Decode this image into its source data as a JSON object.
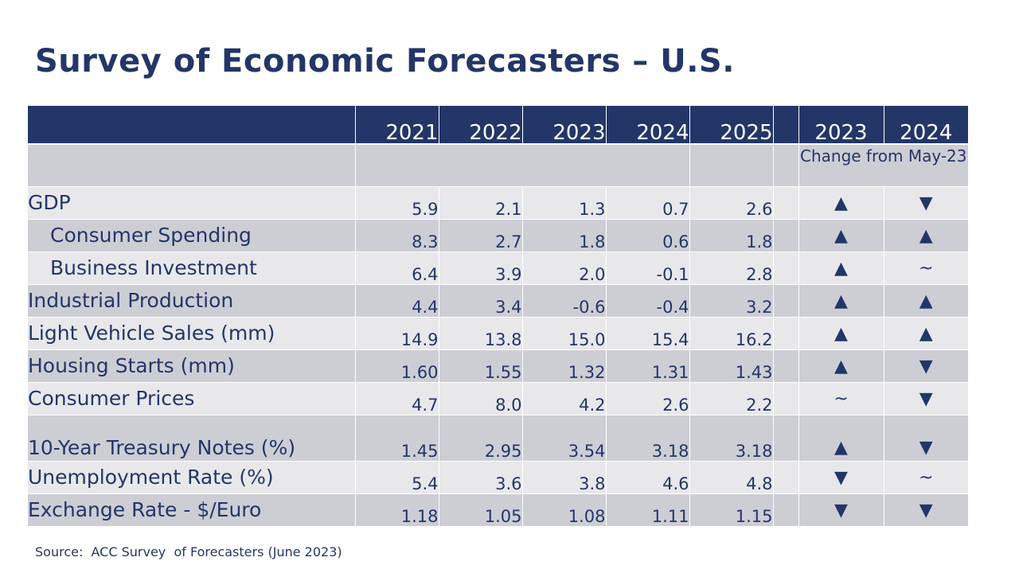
{
  "title": "Survey of Economic Forecasters – U.S.",
  "header": {
    "years": [
      "2021",
      "2022",
      "2023",
      "2024",
      "2025"
    ],
    "change_years": [
      "2023",
      "2024"
    ],
    "change_note": "Change from May-23"
  },
  "rows": [
    {
      "label": "GDP",
      "indent": false,
      "values": [
        "5.9",
        "2.1",
        "1.3",
        "0.7",
        "2.6"
      ],
      "changes": [
        "▲",
        "▼"
      ]
    },
    {
      "label": "Consumer Spending",
      "indent": true,
      "values": [
        "8.3",
        "2.7",
        "1.8",
        "0.6",
        "1.8"
      ],
      "changes": [
        "▲",
        "▲"
      ]
    },
    {
      "label": "Business Investment",
      "indent": true,
      "values": [
        "6.4",
        "3.9",
        "2.0",
        "-0.1",
        "2.8"
      ],
      "changes": [
        "▲",
        "~"
      ]
    },
    {
      "label": "Industrial Production",
      "indent": false,
      "values": [
        "4.4",
        "3.4",
        "-0.6",
        "-0.4",
        "3.2"
      ],
      "changes": [
        "▲",
        "▲"
      ]
    },
    {
      "label": "Light Vehicle Sales (mm)",
      "indent": false,
      "values": [
        "14.9",
        "13.8",
        "15.0",
        "15.4",
        "16.2"
      ],
      "changes": [
        "▲",
        "▲"
      ]
    },
    {
      "label": "Housing Starts (mm)",
      "indent": false,
      "values": [
        "1.60",
        "1.55",
        "1.32",
        "1.31",
        "1.43"
      ],
      "changes": [
        "▲",
        "▼"
      ]
    },
    {
      "label": "Consumer Prices",
      "indent": false,
      "values": [
        "4.7",
        "8.0",
        "4.2",
        "2.6",
        "2.2"
      ],
      "changes": [
        "~",
        "▼"
      ]
    },
    {
      "label": "10-Year Treasury Notes (%)",
      "indent": false,
      "values": [
        "1.45",
        "2.95",
        "3.54",
        "3.18",
        "3.18"
      ],
      "changes": [
        "▲",
        "▼"
      ]
    },
    {
      "label": "Unemployment Rate (%)",
      "indent": false,
      "values": [
        "5.4",
        "3.6",
        "3.8",
        "4.6",
        "4.8"
      ],
      "changes": [
        "▼",
        "~"
      ]
    },
    {
      "label": "Exchange Rate - $/Euro",
      "indent": false,
      "values": [
        "1.18",
        "1.05",
        "1.08",
        "1.11",
        "1.15"
      ],
      "changes": [
        "▼",
        "▼"
      ]
    }
  ],
  "source": "Source:  ACC Survey  of Forecasters (June 2023)",
  "colors": {
    "navy": "#233668",
    "row_light": "#e8e8eb",
    "row_dark": "#cdced4"
  }
}
